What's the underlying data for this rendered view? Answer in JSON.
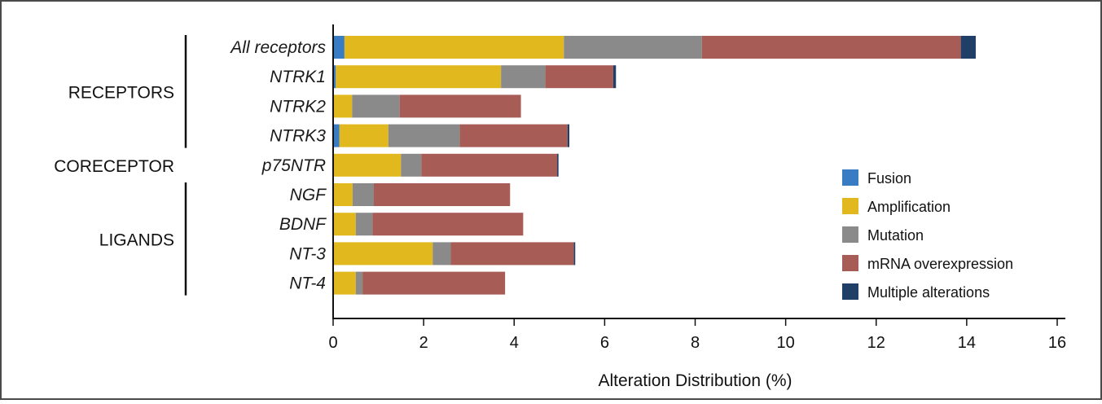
{
  "chart_data": {
    "type": "bar",
    "orientation": "horizontal",
    "stacked": true,
    "categories": [
      "All receptors",
      "NTRK1",
      "NTRK2",
      "NTRK3",
      "p75NTR",
      "NGF",
      "BDNF",
      "NT-3",
      "NT-4"
    ],
    "groups": [
      {
        "label": "RECEPTORS",
        "categories": [
          "All receptors",
          "NTRK1",
          "NTRK2",
          "NTRK3"
        ]
      },
      {
        "label": "CORECEPTOR",
        "categories": [
          "p75NTR"
        ]
      },
      {
        "label": "LIGANDS",
        "categories": [
          "NGF",
          "BDNF",
          "NT-3",
          "NT-4"
        ]
      }
    ],
    "series": [
      {
        "name": "Fusion",
        "color": "#3a7cc4",
        "values": [
          0.25,
          0.06,
          0.0,
          0.14,
          0.0,
          0.0,
          0.0,
          0.0,
          0.0
        ]
      },
      {
        "name": "Amplification",
        "color": "#e1b91f",
        "values": [
          4.85,
          3.65,
          0.42,
          1.08,
          1.5,
          0.43,
          0.5,
          2.2,
          0.5
        ]
      },
      {
        "name": "Mutation",
        "color": "#8a8a8a",
        "values": [
          3.05,
          0.98,
          1.05,
          1.58,
          0.45,
          0.47,
          0.37,
          0.4,
          0.15
        ]
      },
      {
        "name": "mRNA overexpression",
        "color": "#a85c56",
        "values": [
          5.72,
          1.5,
          2.68,
          2.38,
          3.0,
          3.01,
          3.33,
          2.72,
          3.15
        ]
      },
      {
        "name": "Multiple alterations",
        "color": "#1f3f66",
        "values": [
          0.33,
          0.06,
          0.0,
          0.04,
          0.03,
          0.0,
          0.0,
          0.03,
          0.0
        ]
      }
    ],
    "xlabel": "Alteration Distribution (%)",
    "xlim": [
      0,
      16
    ],
    "xticks": [
      0,
      2,
      4,
      6,
      8,
      10,
      12,
      14,
      16
    ],
    "grid": false,
    "legend_position": "right"
  }
}
